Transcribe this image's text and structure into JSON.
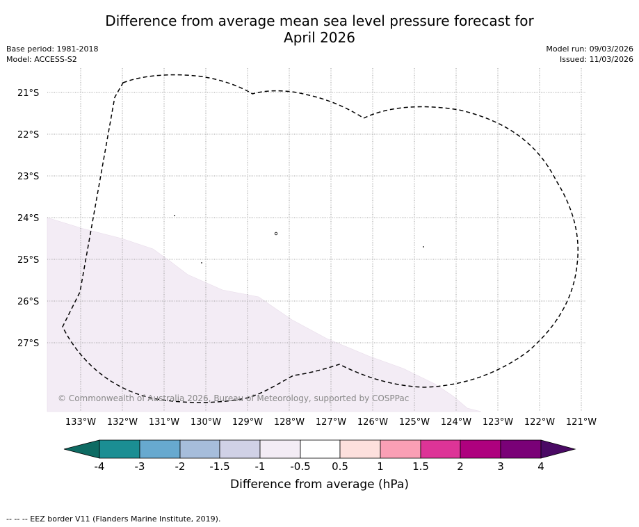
{
  "header": {
    "title_line1": "Difference from average mean sea level pressure forecast for",
    "title_line2": "April 2026",
    "base_period": "Base period: 1981-2018",
    "model": "Model: ACCESS-S2",
    "model_run": "Model run: 09/03/2026",
    "issued": "Issued: 11/03/2026"
  },
  "map": {
    "lon_labels": [
      "133°W",
      "132°W",
      "131°W",
      "130°W",
      "129°W",
      "128°W",
      "127°W",
      "126°W",
      "125°W",
      "124°W",
      "123°W",
      "122°W",
      "121°W"
    ],
    "lat_labels": [
      "21°S",
      "22°S",
      "23°S",
      "24°S",
      "25°S",
      "26°S",
      "27°S"
    ],
    "copyright": "© Commonwealth of Australia 2026, Bureau of Meteorology, supported by COSPPac",
    "shaded_category": "-1 to -0.5 hPa",
    "shaded_color": "#f3ecf5"
  },
  "colorbar": {
    "label": "Difference from average (hPa)",
    "ticks": [
      "-4",
      "-3",
      "-2",
      "-1.5",
      "-1",
      "-0.5",
      "0.5",
      "1",
      "1.5",
      "2",
      "3",
      "4"
    ],
    "low_extend_color": "#0e6b63",
    "high_extend_color": "#4a0a64",
    "colors": [
      "#1b8e93",
      "#67a9cf",
      "#a6bddb",
      "#d0d1e6",
      "#f3ecf5",
      "#ffffff",
      "#fde0dd",
      "#fa9fb5",
      "#dd3497",
      "#ae017e",
      "#7a0177"
    ]
  },
  "footer": {
    "legend": "--  --  -- EEZ border V11 (Flanders Marine Institute, 2019)."
  }
}
